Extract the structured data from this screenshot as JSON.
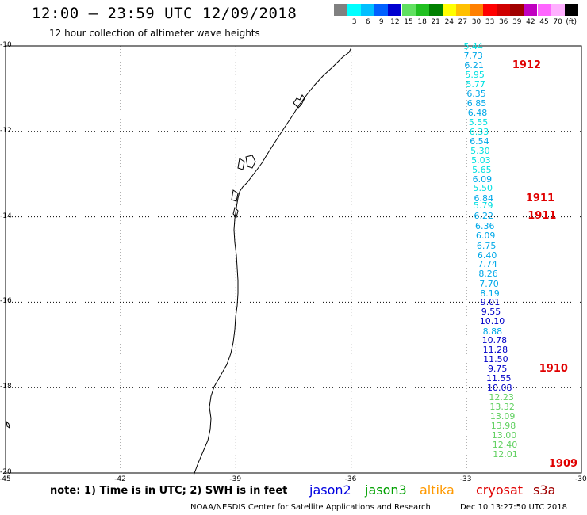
{
  "header": {
    "title": "12:00 — 23:59 UTC 12/09/2018",
    "subtitle": "12 hour collection of altimeter wave heights"
  },
  "colorbar": {
    "swatches": [
      {
        "color": "#808080",
        "label": ""
      },
      {
        "color": "#00ffff",
        "label": "3"
      },
      {
        "color": "#00bfff",
        "label": "6"
      },
      {
        "color": "#0060ff",
        "label": "9"
      },
      {
        "color": "#0000d0",
        "label": "12"
      },
      {
        "color": "#60e060",
        "label": "15"
      },
      {
        "color": "#20c020",
        "label": "18"
      },
      {
        "color": "#008000",
        "label": "21"
      },
      {
        "color": "#ffff00",
        "label": "24"
      },
      {
        "color": "#ffc000",
        "label": "27"
      },
      {
        "color": "#ff8000",
        "label": "30"
      },
      {
        "color": "#ff0000",
        "label": "33"
      },
      {
        "color": "#d00000",
        "label": "36"
      },
      {
        "color": "#a00000",
        "label": "39"
      },
      {
        "color": "#c000c0",
        "label": "42"
      },
      {
        "color": "#ff66ff",
        "label": "45"
      },
      {
        "color": "#ffb0ff",
        "label": "70"
      },
      {
        "color": "#000000",
        "label": "(ft)"
      }
    ]
  },
  "axes": {
    "y_labels": [
      "-10",
      "-12",
      "-14",
      "-16",
      "-18",
      "-20"
    ],
    "x_labels": [
      "-45",
      "-42",
      "-39",
      "-36",
      "-33",
      "-30"
    ],
    "lat_range": [
      -20,
      -10
    ],
    "lon_range": [
      -45,
      -30
    ]
  },
  "wave_heights": [
    {
      "v": "5.44",
      "c": "#00e0e0",
      "lat": -10.0,
      "lon": -32.78
    },
    {
      "v": "7.73",
      "c": "#00a8e8",
      "lat": -10.22,
      "lon": -32.78
    },
    {
      "v": "6.21",
      "c": "#00a8e8",
      "lat": -10.44,
      "lon": -32.76
    },
    {
      "v": "5.95",
      "c": "#00e0e0",
      "lat": -10.67,
      "lon": -32.74
    },
    {
      "v": "5.77",
      "c": "#00e0e0",
      "lat": -10.89,
      "lon": -32.72
    },
    {
      "v": "6.35",
      "c": "#00a8e8",
      "lat": -11.11,
      "lon": -32.7
    },
    {
      "v": "6.85",
      "c": "#00a8e8",
      "lat": -11.33,
      "lon": -32.69
    },
    {
      "v": "6.48",
      "c": "#00a8e8",
      "lat": -11.56,
      "lon": -32.67
    },
    {
      "v": "5.55",
      "c": "#00e0e0",
      "lat": -11.78,
      "lon": -32.65
    },
    {
      "v": "6.33",
      "c": "#00e0e0",
      "lat": -12.0,
      "lon": -32.63
    },
    {
      "v": "6.54",
      "c": "#00a8e8",
      "lat": -12.22,
      "lon": -32.62
    },
    {
      "v": "5.30",
      "c": "#00e0e0",
      "lat": -12.44,
      "lon": -32.6
    },
    {
      "v": "5.03",
      "c": "#00e0e0",
      "lat": -12.67,
      "lon": -32.58
    },
    {
      "v": "5.65",
      "c": "#00e0e0",
      "lat": -12.89,
      "lon": -32.56
    },
    {
      "v": "6.09",
      "c": "#00a8e8",
      "lat": -13.11,
      "lon": -32.55
    },
    {
      "v": "5.50",
      "c": "#00e0e0",
      "lat": -13.33,
      "lon": -32.53
    },
    {
      "v": "6.84",
      "c": "#00a8e8",
      "lat": -13.56,
      "lon": -32.51
    },
    {
      "v": "5.79",
      "c": "#00e0e0",
      "lat": -13.72,
      "lon": -32.52
    },
    {
      "v": "6.22",
      "c": "#00a8e8",
      "lat": -13.97,
      "lon": -32.51
    },
    {
      "v": "6.36",
      "c": "#00a8e8",
      "lat": -14.22,
      "lon": -32.48
    },
    {
      "v": "6.09",
      "c": "#00a8e8",
      "lat": -14.44,
      "lon": -32.46
    },
    {
      "v": "6.75",
      "c": "#00a8e8",
      "lat": -14.67,
      "lon": -32.44
    },
    {
      "v": "6.40",
      "c": "#00a8e8",
      "lat": -14.89,
      "lon": -32.42
    },
    {
      "v": "7.74",
      "c": "#00a8e8",
      "lat": -15.11,
      "lon": -32.41
    },
    {
      "v": "8.26",
      "c": "#00a8e8",
      "lat": -15.33,
      "lon": -32.39
    },
    {
      "v": "7.70",
      "c": "#00a8e8",
      "lat": -15.56,
      "lon": -32.37
    },
    {
      "v": "8.19",
      "c": "#00a8e8",
      "lat": -15.78,
      "lon": -32.35
    },
    {
      "v": "9.01",
      "c": "#0000c8",
      "lat": -16.0,
      "lon": -32.34
    },
    {
      "v": "9.55",
      "c": "#0000c8",
      "lat": -16.22,
      "lon": -32.32
    },
    {
      "v": "10.10",
      "c": "#0000c8",
      "lat": -16.44,
      "lon": -32.36
    },
    {
      "v": "8.88",
      "c": "#00a8e8",
      "lat": -16.67,
      "lon": -32.28
    },
    {
      "v": "10.78",
      "c": "#0000c8",
      "lat": -16.89,
      "lon": -32.3
    },
    {
      "v": "11.28",
      "c": "#0000c8",
      "lat": -17.11,
      "lon": -32.28
    },
    {
      "v": "11.50",
      "c": "#0000c8",
      "lat": -17.33,
      "lon": -32.27
    },
    {
      "v": "9.75",
      "c": "#0000c8",
      "lat": -17.56,
      "lon": -32.15
    },
    {
      "v": "11.55",
      "c": "#0000c8",
      "lat": -17.78,
      "lon": -32.19
    },
    {
      "v": "10.08",
      "c": "#0000c8",
      "lat": -18.0,
      "lon": -32.17
    },
    {
      "v": "12.23",
      "c": "#60d060",
      "lat": -18.22,
      "lon": -32.12
    },
    {
      "v": "13.32",
      "c": "#60d060",
      "lat": -18.44,
      "lon": -32.1
    },
    {
      "v": "13.09",
      "c": "#60d060",
      "lat": -18.67,
      "lon": -32.09
    },
    {
      "v": "13.98",
      "c": "#60d060",
      "lat": -18.89,
      "lon": -32.07
    },
    {
      "v": "13.00",
      "c": "#60d060",
      "lat": -19.11,
      "lon": -32.05
    },
    {
      "v": "12.40",
      "c": "#60d060",
      "lat": -19.33,
      "lon": -32.03
    },
    {
      "v": "12.01",
      "c": "#60d060",
      "lat": -19.56,
      "lon": -32.02
    }
  ],
  "cyclone_labels": [
    {
      "text": "1912",
      "lat": -10.44,
      "lon": -31.8
    },
    {
      "text": "1911",
      "lat": -13.56,
      "lon": -31.45
    },
    {
      "text": "1911",
      "lat": -13.97,
      "lon": -31.4
    },
    {
      "text": "1910",
      "lat": -17.56,
      "lon": -31.1
    },
    {
      "text": "1909",
      "lat": -19.78,
      "lon": -30.85
    }
  ],
  "footer": {
    "note": "note:  1) Time is in UTC;  2) SWH is in feet",
    "satellites": [
      {
        "name": "jason2",
        "color": "#0000e0"
      },
      {
        "name": "jason3",
        "color": "#00a000"
      },
      {
        "name": "altika",
        "color": "#ff9900"
      },
      {
        "name": "cryosat",
        "color": "#e00000"
      },
      {
        "name": "s3a",
        "color": "#a00000"
      }
    ],
    "credit": "NOAA/NESDIS Center for Satellite Applications and Research",
    "timestamp": "Dec 10 13:27:50 UTC 2018"
  }
}
